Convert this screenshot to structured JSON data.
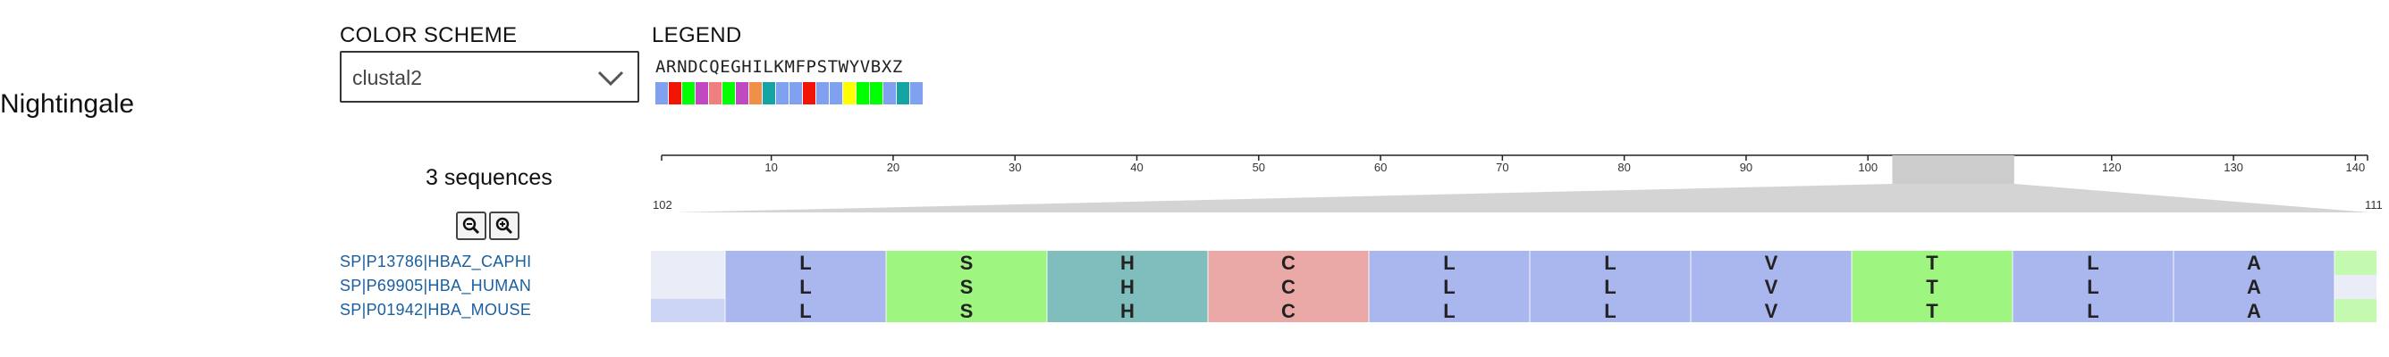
{
  "app": {
    "title": "Nightingale"
  },
  "color_scheme": {
    "label": "COLOR SCHEME",
    "selected": "clustal2"
  },
  "legend": {
    "label": "LEGEND",
    "letters": "ARNDCQEGHILKMFPSTWYVBXZ",
    "colors": [
      "#80a0f0",
      "#f01505",
      "#00ff00",
      "#c048c0",
      "#f08080",
      "#00ff00",
      "#c048c0",
      "#f09048",
      "#15a4a4",
      "#80a0f0",
      "#80a0f0",
      "#f01505",
      "#80a0f0",
      "#80a0f0",
      "#ffff00",
      "#00ff00",
      "#00ff00",
      "#80a0f0",
      "#15a4a4",
      "#80a0f0",
      "#ffffff",
      "#ffffff",
      "#ffffff"
    ]
  },
  "sequences": {
    "count_label": "3 sequences",
    "names": [
      "SP|P13786|HBAZ_CAPHI",
      "SP|P69905|HBA_HUMAN",
      "SP|P01942|HBA_MOUSE"
    ]
  },
  "navigation": {
    "ticks": [
      10,
      20,
      30,
      40,
      50,
      60,
      70,
      80,
      90,
      100,
      110,
      120,
      130,
      140
    ],
    "min": 1,
    "max": 141,
    "window_start": 102,
    "window_end": 111,
    "window_start_label": "102",
    "window_end_label": "111"
  },
  "alignment": {
    "columns": [
      {
        "letter": "L",
        "color": "#aab6ee"
      },
      {
        "letter": "S",
        "color": "#9ef57f"
      },
      {
        "letter": "H",
        "color": "#80bdbd"
      },
      {
        "letter": "C",
        "color": "#eaa9a6"
      },
      {
        "letter": "L",
        "color": "#aab6ee"
      },
      {
        "letter": "L",
        "color": "#aab6ee"
      },
      {
        "letter": "V",
        "color": "#aab6ee"
      },
      {
        "letter": "T",
        "color": "#9ef57f"
      },
      {
        "letter": "L",
        "color": "#aab6ee"
      },
      {
        "letter": "A",
        "color": "#aab6ee"
      }
    ],
    "partial_left_colors": [
      "#eaecf8",
      "#eaecf8",
      "#ccd5f5"
    ],
    "partial_right_colors": [
      "#c4f9b0",
      "#eaecf8",
      "#c4f9b0"
    ]
  },
  "icons": {
    "zoom_out": "zoom-out-icon",
    "zoom_in": "zoom-in-icon",
    "dropdown": "chevron-down-icon"
  }
}
